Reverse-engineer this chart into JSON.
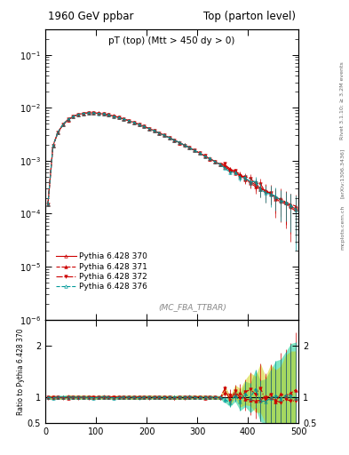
{
  "title_left": "1960 GeV ppbar",
  "title_right": "Top (parton level)",
  "plot_label": "pT (top) (Mtt > 450 dy > 0)",
  "mc_label": "(MC_FBA_TTBAR)",
  "right_label_1": "Rivet 3.1.10; ≥ 3.2M events",
  "right_label_2": "[arXiv:1306.3436]",
  "right_label_3": "mcplots.cern.ch",
  "ylabel_ratio": "Ratio to Pythia 6.428 370",
  "xlabel": "",
  "xlim": [
    0,
    500
  ],
  "ylim_main": [
    1e-06,
    0.3
  ],
  "ylim_ratio": [
    0.5,
    2.5
  ],
  "series": [
    {
      "label": "Pythia 6.428 370",
      "color": "#cc0000",
      "linestyle": "-",
      "marker": "^",
      "fillstyle": "none",
      "linewidth": 0.8,
      "markersize": 2.5
    },
    {
      "label": "Pythia 6.428 371",
      "color": "#cc0000",
      "linestyle": "--",
      "marker": "^",
      "fillstyle": "full",
      "linewidth": 0.8,
      "markersize": 2.5
    },
    {
      "label": "Pythia 6.428 372",
      "color": "#cc0000",
      "linestyle": "-.",
      "marker": "v",
      "fillstyle": "full",
      "linewidth": 0.8,
      "markersize": 2.5
    },
    {
      "label": "Pythia 6.428 376",
      "color": "#009999",
      "linestyle": "--",
      "marker": "^",
      "fillstyle": "none",
      "linewidth": 0.8,
      "markersize": 2.5
    }
  ],
  "band_color_372": "#cccc00",
  "band_color_376": "#00cc88",
  "background_color": "#ffffff",
  "ratio_band_alpha": 0.5,
  "figsize": [
    3.93,
    5.12
  ],
  "dpi": 100
}
